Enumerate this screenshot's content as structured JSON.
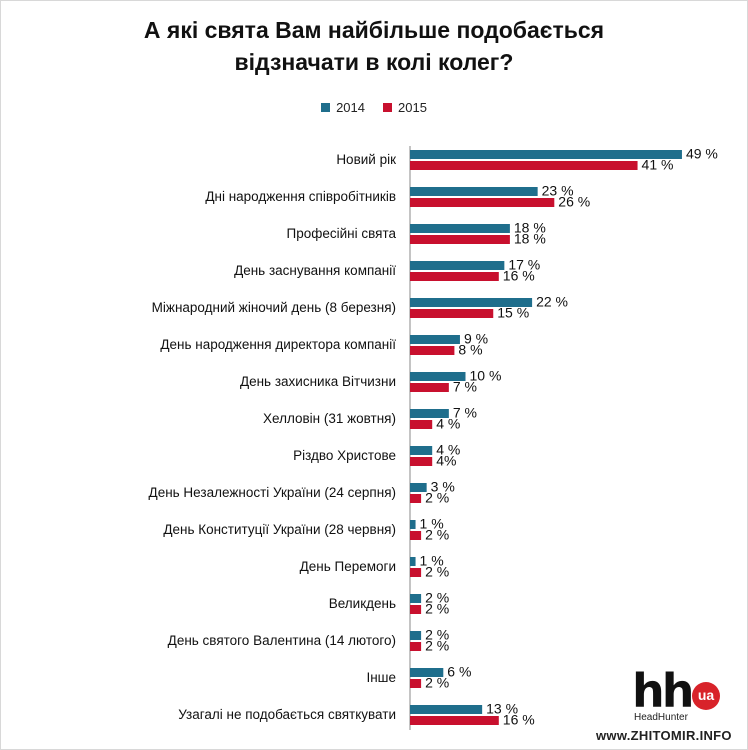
{
  "chart_data": {
    "type": "bar",
    "orientation": "horizontal",
    "title_lines": [
      "А які свята Вам найбільше подобається",
      "відзначати в колі колег?"
    ],
    "legend_placement": "top-center",
    "grid": false,
    "xlim": [
      0,
      60
    ],
    "categories": [
      "Новий рік",
      "Дні народження співробітників",
      "Професійні свята",
      "День заснування компанії",
      "Міжнародний жіночий день (8 березня)",
      "День народження директора компанії",
      "День захисника Вітчизни",
      "Хелловін (31 жовтня)",
      "Різдво Христове",
      "День Незалежності України (24 серпня)",
      "День Конституції України (28 червня)",
      "День Перемоги",
      "Великдень",
      "День святого Валентина (14 лютого)",
      "Інше",
      "Узагалі не подобається святкувати"
    ],
    "series": [
      {
        "name": "2014",
        "color": "#1f6e8c",
        "values": [
          49,
          23,
          18,
          17,
          22,
          9,
          10,
          7,
          4,
          3,
          1,
          1,
          2,
          2,
          6,
          13
        ],
        "labels": [
          "49 %",
          "23 %",
          "18 %",
          "17 %",
          "22 %",
          "9 %",
          "10 %",
          "7 %",
          "4 %",
          "3 %",
          "1 %",
          "1 %",
          "2 %",
          "2 %",
          "6 %",
          "13 %"
        ]
      },
      {
        "name": "2015",
        "color": "#c8102e",
        "values": [
          41,
          26,
          18,
          16,
          15,
          8,
          7,
          4,
          4,
          2,
          2,
          2,
          2,
          2,
          2,
          16
        ],
        "labels": [
          "41 %",
          "26 %",
          "18 %",
          "16 %",
          "15 %",
          "8 %",
          "7 %",
          "4 %",
          "4%",
          "2 %",
          "2 %",
          "2 %",
          "2 %",
          "2 %",
          "2 %",
          "16 %"
        ]
      }
    ]
  },
  "branding": {
    "logo_mark": "hh",
    "logo_badge": "ua",
    "logo_name": "HeadHunter",
    "watermark": "www.ZHITOMIR.INFO"
  }
}
